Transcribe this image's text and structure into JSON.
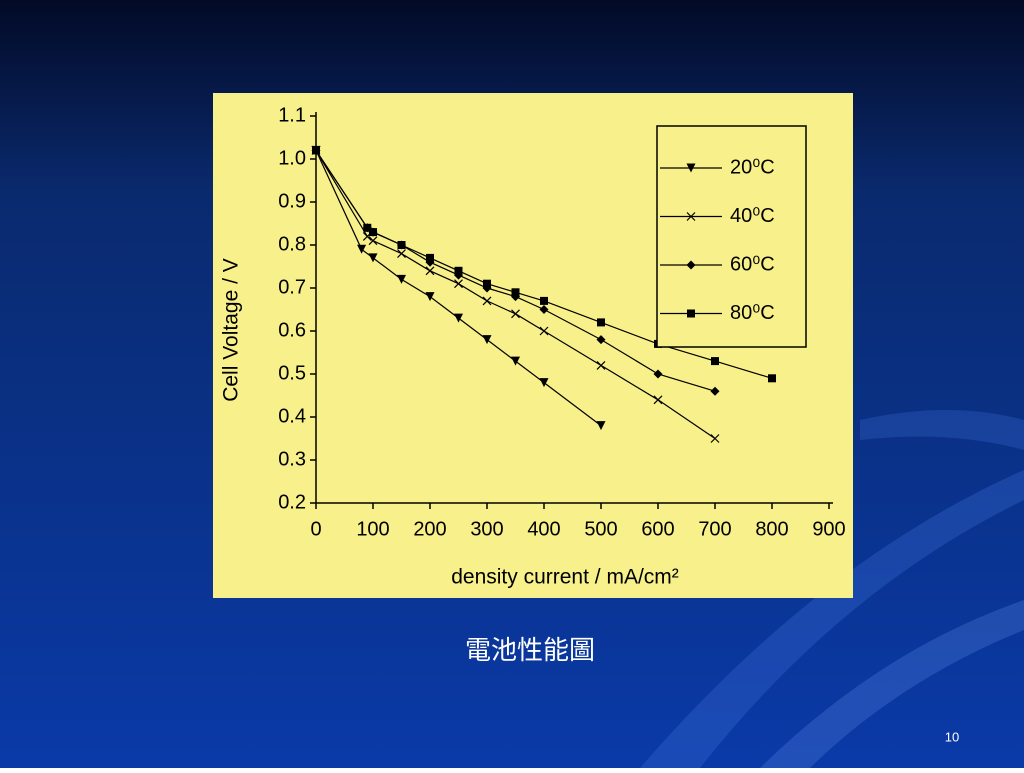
{
  "chart_data": {
    "type": "line",
    "ylabel": "Cell Voltage / V",
    "xlabel": "density current / mA/cm²",
    "xlim": [
      0,
      900
    ],
    "xticks": [
      0,
      100,
      200,
      300,
      400,
      500,
      600,
      700,
      800,
      900
    ],
    "ylim": [
      0.2,
      1.1
    ],
    "yticks": [
      0.2,
      0.3,
      0.4,
      0.5,
      0.6,
      0.7,
      0.8,
      0.9,
      {
        "value": 1,
        "label": "1.0"
      },
      1.1
    ],
    "legend": "upper right",
    "series": [
      {
        "name": "20⁰C",
        "color": "#000000",
        "marker": "triangle-down",
        "x": [
          0,
          80,
          100,
          150,
          200,
          250,
          300,
          350,
          400,
          500
        ],
        "values": [
          1.02,
          0.79,
          0.77,
          0.72,
          0.68,
          0.63,
          0.58,
          0.53,
          0.48,
          0.38
        ]
      },
      {
        "name": "40⁰C",
        "color": "#000000",
        "marker": "cross",
        "x": [
          0,
          90,
          100,
          150,
          200,
          250,
          300,
          350,
          400,
          500,
          600,
          700
        ],
        "values": [
          1.02,
          0.82,
          0.81,
          0.78,
          0.74,
          0.71,
          0.67,
          0.64,
          0.6,
          0.52,
          0.44,
          0.35
        ]
      },
      {
        "name": "60⁰C",
        "color": "#000000",
        "marker": "diamond",
        "x": [
          0,
          90,
          100,
          150,
          200,
          250,
          300,
          350,
          400,
          500,
          600,
          700
        ],
        "values": [
          1.02,
          0.84,
          0.83,
          0.8,
          0.76,
          0.73,
          0.7,
          0.68,
          0.65,
          0.58,
          0.5,
          0.46
        ]
      },
      {
        "name": "80⁰C",
        "color": "#000000",
        "marker": "square",
        "x": [
          0,
          90,
          100,
          150,
          200,
          250,
          300,
          350,
          400,
          500,
          600,
          700,
          800
        ],
        "values": [
          1.02,
          0.84,
          0.83,
          0.8,
          0.77,
          0.74,
          0.71,
          0.69,
          0.67,
          0.62,
          0.57,
          0.53,
          0.49
        ]
      }
    ]
  },
  "caption": "電池性能圖",
  "page_number": "10"
}
